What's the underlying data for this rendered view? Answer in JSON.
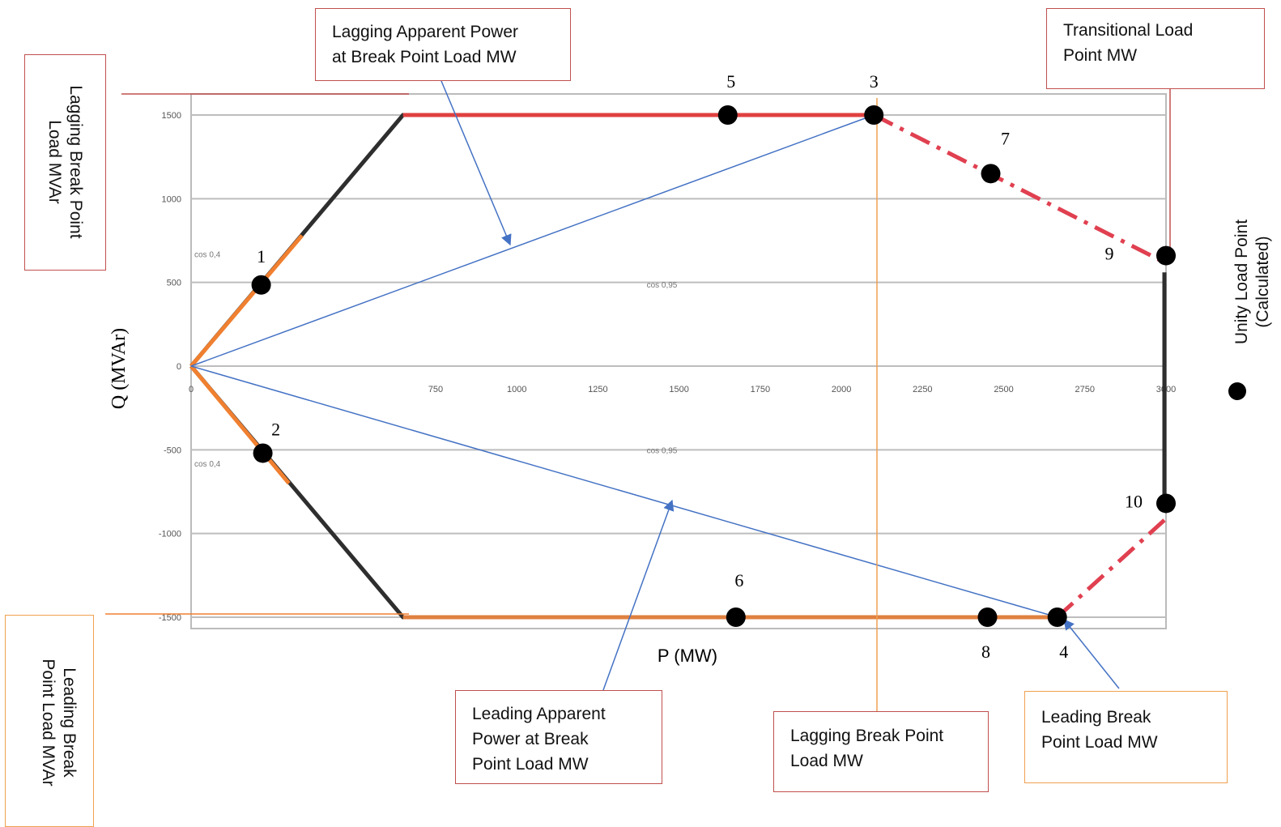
{
  "chart_data": {
    "type": "line",
    "title": "",
    "xlabel": "P (MW)",
    "ylabel": "Q (MVAr)",
    "xlim": [
      0,
      3000
    ],
    "ylim": [
      -1500,
      1500
    ],
    "x_ticks": [
      "0",
      "750",
      "1000",
      "1250",
      "1500",
      "1750",
      "2000",
      "2250",
      "2500",
      "2750",
      "3000"
    ],
    "x_tick_values": [
      0,
      750,
      1000,
      1250,
      1500,
      1750,
      2000,
      2250,
      2500,
      2750,
      3000
    ],
    "y_ticks": [
      "1500",
      "1000",
      "500",
      "0",
      "-500",
      "-1000",
      "-1500"
    ],
    "y_tick_values": [
      1500,
      1000,
      500,
      0,
      -500,
      -1000,
      -1500
    ],
    "grid": "horizontal",
    "faint_labels": [
      {
        "text": "cos 0,4",
        "x": 0,
        "y": 650
      },
      {
        "text": "cos 0,4",
        "x": 0,
        "y": -600
      },
      {
        "text": "cos 0,95",
        "x": 1400,
        "y": 470
      },
      {
        "text": "cos 0,95",
        "x": 1400,
        "y": -520
      }
    ],
    "series": [
      {
        "color": "#2e2e2e",
        "style": "solid",
        "points": [
          [
            0,
            0
          ],
          [
            650,
            1500
          ],
          [
            2100,
            1500
          ]
        ]
      },
      {
        "color": "#2e2e2e",
        "style": "solid",
        "points": [
          [
            0,
            0
          ],
          [
            650,
            -1500
          ],
          [
            2665,
            -1500
          ]
        ]
      },
      {
        "color": "#f08030",
        "style": "solid",
        "points": [
          [
            0,
            0
          ],
          [
            340,
            780
          ]
        ]
      },
      {
        "color": "#f08030",
        "style": "solid",
        "points": [
          [
            0,
            0
          ],
          [
            300,
            -700
          ]
        ]
      },
      {
        "color": "#e04040",
        "style": "solid",
        "points": [
          [
            650,
            1500
          ],
          [
            2100,
            1500
          ]
        ]
      },
      {
        "color": "#e08040",
        "style": "solid",
        "points": [
          [
            650,
            -1500
          ],
          [
            2665,
            -1500
          ]
        ]
      },
      {
        "color": "#2e2e2e",
        "style": "solid",
        "points": [
          [
            2995,
            560
          ],
          [
            2995,
            -820
          ]
        ]
      },
      {
        "color": "#e04050",
        "style": "dashdot",
        "points": [
          [
            2100,
            1500
          ],
          [
            2995,
            620
          ]
        ]
      },
      {
        "color": "#e04050",
        "style": "dashdot",
        "points": [
          [
            2665,
            -1500
          ],
          [
            2995,
            -920
          ]
        ]
      },
      {
        "color": "#4472c4",
        "style": "solid",
        "points": [
          [
            0,
            0
          ],
          [
            2100,
            1500
          ]
        ]
      },
      {
        "color": "#4472c4",
        "style": "solid",
        "points": [
          [
            0,
            0
          ],
          [
            2665,
            -1500
          ]
        ]
      }
    ],
    "points": [
      {
        "label": "1",
        "x": 215,
        "y": 485
      },
      {
        "label": "2",
        "x": 220,
        "y": -520
      },
      {
        "label": "3",
        "x": 2100,
        "y": 1500
      },
      {
        "label": "4",
        "x": 2665,
        "y": -1500
      },
      {
        "label": "5",
        "x": 1650,
        "y": 1500
      },
      {
        "label": "6",
        "x": 1675,
        "y": -1500
      },
      {
        "label": "7",
        "x": 2460,
        "y": 1150
      },
      {
        "label": "8",
        "x": 2450,
        "y": -1500
      },
      {
        "label": "9",
        "x": 3000,
        "y": 660
      },
      {
        "label": "10",
        "x": 3000,
        "y": -820
      }
    ]
  },
  "callouts": {
    "lagging_apparent": "Lagging Apparent Power\nat Break Point Load MW",
    "transitional": "Transitional Load\nPoint MW",
    "leading_apparent": "Leading Apparent\nPower at Break\nPoint Load MW",
    "lagging_break_mw": "Lagging Break Point\nLoad MW",
    "leading_break_mw": "Leading Break\nPoint Load MW",
    "lagging_break_mvar": "Lagging Break Point\nLoad MVAr",
    "leading_break_mvar": "Leading Break\nPoint Load MVAr",
    "unity_load": "Unity Load Point\n(Calculated)"
  }
}
